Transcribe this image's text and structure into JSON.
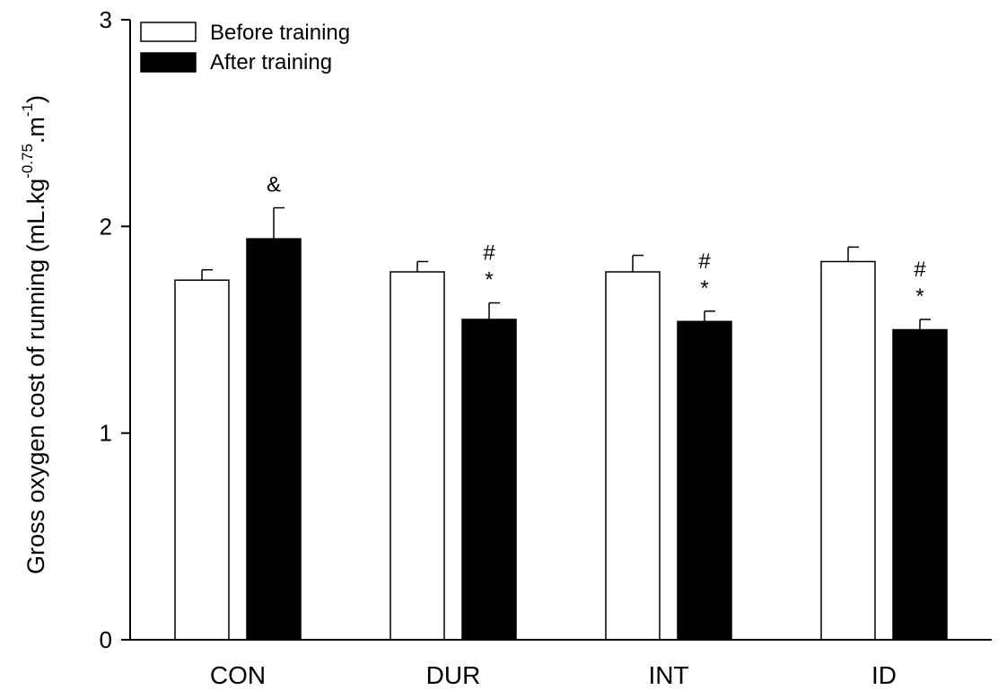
{
  "chart_data": {
    "type": "bar",
    "ylabel_parts": [
      "Gross oxygen cost of running (mL.kg",
      "-0.75",
      ".m",
      "-1",
      ")"
    ],
    "categories": [
      "CON",
      "DUR",
      "INT",
      "ID"
    ],
    "ylim": [
      0,
      3
    ],
    "yticks": [
      "0",
      "1",
      "2",
      "3"
    ],
    "ytick_values": [
      0,
      1,
      2,
      3
    ],
    "grid": false,
    "legend_position": "top-left",
    "series": [
      {
        "name": "Before training",
        "fill": "#ffffff",
        "stroke": "#000000",
        "values": [
          1.74,
          1.78,
          1.78,
          1.83
        ],
        "errors": [
          0.05,
          0.05,
          0.08,
          0.07
        ],
        "annotations": [
          "",
          "",
          "",
          ""
        ]
      },
      {
        "name": "After training",
        "fill": "#000000",
        "stroke": "#000000",
        "values": [
          1.94,
          1.55,
          1.54,
          1.5
        ],
        "errors": [
          0.15,
          0.08,
          0.05,
          0.05
        ],
        "annotations": [
          "&",
          "#\n*",
          "#\n*",
          "#\n*"
        ]
      }
    ]
  }
}
